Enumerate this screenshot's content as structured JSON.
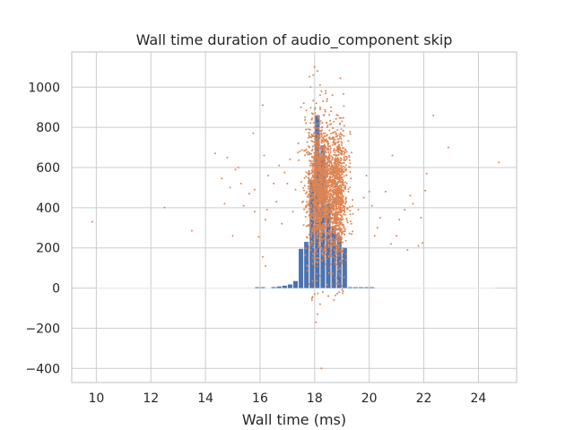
{
  "chart_data": {
    "type": "scatter",
    "title": "Wall time duration of audio_component skip",
    "xlabel": "Wall time (ms)",
    "ylabel": "",
    "xlim": [
      9.1,
      25.4
    ],
    "ylim": [
      -470,
      1175
    ],
    "xticks": [
      10,
      12,
      14,
      16,
      18,
      20,
      22,
      24
    ],
    "yticks": [
      -400,
      -200,
      0,
      200,
      400,
      600,
      800,
      1000
    ],
    "grid": true,
    "histogram": {
      "bin_width": 0.2,
      "bins": [
        {
          "x": 15.9,
          "count": 3
        },
        {
          "x": 16.1,
          "count": 3
        },
        {
          "x": 16.5,
          "count": 5
        },
        {
          "x": 16.7,
          "count": 8
        },
        {
          "x": 16.9,
          "count": 12
        },
        {
          "x": 17.1,
          "count": 18
        },
        {
          "x": 17.3,
          "count": 35
        },
        {
          "x": 17.5,
          "count": 195
        },
        {
          "x": 17.7,
          "count": 230
        },
        {
          "x": 17.9,
          "count": 540
        },
        {
          "x": 18.1,
          "count": 860
        },
        {
          "x": 18.3,
          "count": 710
        },
        {
          "x": 18.5,
          "count": 420
        },
        {
          "x": 18.7,
          "count": 300
        },
        {
          "x": 18.9,
          "count": 260
        },
        {
          "x": 19.1,
          "count": 200
        },
        {
          "x": 19.3,
          "count": 3
        },
        {
          "x": 19.5,
          "count": 2
        },
        {
          "x": 19.7,
          "count": 2
        },
        {
          "x": 19.9,
          "count": 2
        },
        {
          "x": 20.1,
          "count": 1
        }
      ],
      "color": "#4c72b0"
    },
    "scatter": {
      "color": "#dd8452",
      "sparse_points": [
        [
          9.85,
          330
        ],
        [
          12.5,
          400
        ],
        [
          13.5,
          285
        ],
        [
          14.35,
          670
        ],
        [
          14.6,
          545
        ],
        [
          14.8,
          650
        ],
        [
          14.9,
          500
        ],
        [
          15.1,
          590
        ],
        [
          15.2,
          600
        ],
        [
          15.3,
          520
        ],
        [
          15.0,
          260
        ],
        [
          15.4,
          410
        ],
        [
          14.7,
          420
        ],
        [
          15.6,
          470
        ],
        [
          15.8,
          380
        ],
        [
          15.95,
          255
        ],
        [
          15.75,
          770
        ],
        [
          16.1,
          910
        ],
        [
          16.15,
          660
        ],
        [
          15.8,
          490
        ],
        [
          16.2,
          340
        ],
        [
          16.3,
          560
        ],
        [
          16.25,
          390
        ],
        [
          16.1,
          155
        ],
        [
          16.2,
          110
        ],
        [
          16.5,
          520
        ],
        [
          16.6,
          430
        ],
        [
          16.7,
          610
        ],
        [
          16.9,
          575
        ],
        [
          16.8,
          320
        ],
        [
          17.0,
          520
        ],
        [
          17.1,
          640
        ],
        [
          17.2,
          380
        ],
        [
          17.3,
          490
        ],
        [
          17.4,
          720
        ],
        [
          17.5,
          900
        ],
        [
          19.6,
          390
        ],
        [
          19.8,
          450
        ],
        [
          19.9,
          560
        ],
        [
          20.0,
          480
        ],
        [
          20.1,
          410
        ],
        [
          20.2,
          260
        ],
        [
          20.3,
          300
        ],
        [
          20.4,
          350
        ],
        [
          20.6,
          480
        ],
        [
          20.8,
          220
        ],
        [
          20.85,
          660
        ],
        [
          21.0,
          260
        ],
        [
          21.1,
          340
        ],
        [
          21.3,
          390
        ],
        [
          21.4,
          190
        ],
        [
          21.5,
          460
        ],
        [
          21.6,
          420
        ],
        [
          21.8,
          210
        ],
        [
          21.9,
          350
        ],
        [
          22.1,
          570
        ],
        [
          22.05,
          485
        ],
        [
          21.95,
          225
        ],
        [
          22.35,
          860
        ],
        [
          22.9,
          700
        ],
        [
          24.75,
          625
        ]
      ],
      "dense_clusters": [
        {
          "x_mean": 18.15,
          "x_sd": 0.22,
          "y_mean": 490,
          "y_sd": 160,
          "count": 1400
        },
        {
          "x_mean": 18.75,
          "x_sd": 0.22,
          "y_mean": 470,
          "y_sd": 150,
          "count": 1000
        },
        {
          "x_mean": 18.9,
          "x_sd": 0.12,
          "y_mean": 420,
          "y_sd": 200,
          "count": 200
        }
      ],
      "edge_points": [
        [
          18.0,
          1100
        ],
        [
          18.1,
          1080
        ],
        [
          17.95,
          1060
        ],
        [
          18.2,
          1010
        ],
        [
          17.85,
          1000
        ],
        [
          18.25,
          980
        ],
        [
          18.2,
          960
        ],
        [
          17.6,
          920
        ],
        [
          17.9,
          870
        ],
        [
          18.45,
          930
        ],
        [
          18.6,
          880
        ],
        [
          18.85,
          860
        ],
        [
          18.3,
          930
        ],
        [
          19.0,
          830
        ],
        [
          18.6,
          900
        ],
        [
          17.65,
          850
        ],
        [
          17.7,
          790
        ],
        [
          17.8,
          760
        ],
        [
          18.65,
          960
        ],
        [
          18.0,
          -30
        ],
        [
          18.2,
          -80
        ],
        [
          17.9,
          -60
        ],
        [
          18.1,
          -130
        ],
        [
          18.3,
          -20
        ],
        [
          18.5,
          -40
        ],
        [
          18.7,
          -60
        ],
        [
          18.9,
          -20
        ],
        [
          18.05,
          -170
        ],
        [
          18.25,
          -400
        ],
        [
          19.0,
          10
        ],
        [
          17.8,
          20
        ]
      ]
    }
  }
}
